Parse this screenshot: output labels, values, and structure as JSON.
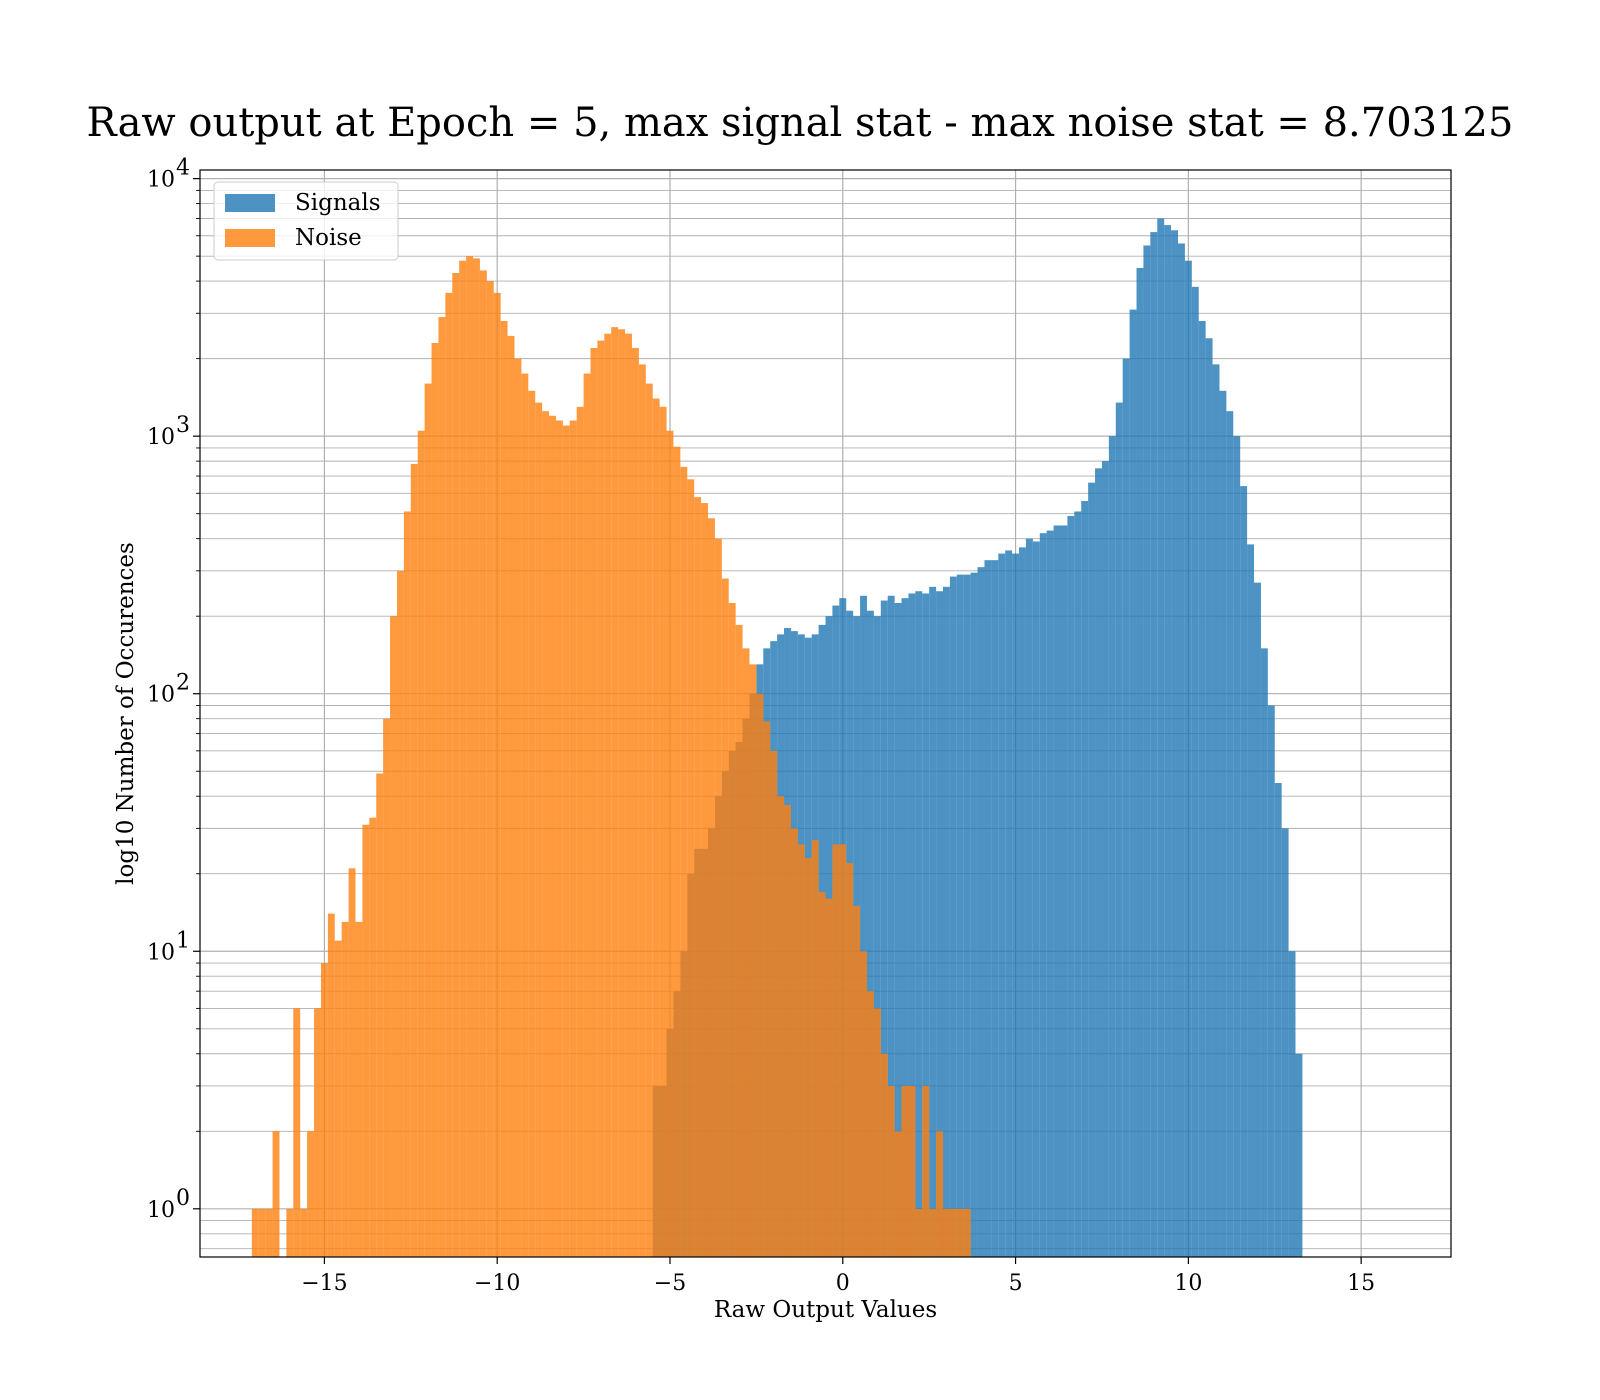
{
  "chart_data": {
    "type": "histogram",
    "title": "Raw output at Epoch = 5, max signal stat - max noise stat = 8.703125",
    "xlabel": "Raw Output Values",
    "ylabel": "log10 Number of Occurences",
    "xlim": [
      -18.6,
      17.6
    ],
    "ylim": [
      0.65,
      10800
    ],
    "yscale": "log",
    "grid": true,
    "legend_position": "upper-left",
    "x_ticks": [
      -15,
      -10,
      -5,
      0,
      5,
      10,
      15
    ],
    "x_tick_labels": [
      "−15",
      "−10",
      "−5",
      "0",
      "5",
      "10",
      "15"
    ],
    "y_ticks": [
      1,
      10,
      100,
      1000,
      10000
    ],
    "y_tick_labels": [
      {
        "base": "10",
        "exp": "0"
      },
      {
        "base": "10",
        "exp": "1"
      },
      {
        "base": "10",
        "exp": "2"
      },
      {
        "base": "10",
        "exp": "3"
      },
      {
        "base": "10",
        "exp": "4"
      }
    ],
    "series": [
      {
        "name": "Signals",
        "color": "#1f77b4",
        "opacity": 0.8,
        "bin_start": -5.5,
        "bin_width": 0.2,
        "counts": [
          3,
          3,
          5,
          7,
          10,
          20,
          25,
          25,
          30,
          40,
          50,
          60,
          65,
          80,
          100,
          130,
          150,
          160,
          170,
          180,
          175,
          170,
          165,
          170,
          185,
          200,
          220,
          235,
          210,
          200,
          240,
          210,
          200,
          230,
          240,
          225,
          235,
          245,
          250,
          245,
          260,
          250,
          260,
          285,
          290,
          290,
          295,
          310,
          330,
          330,
          350,
          360,
          350,
          370,
          400,
          390,
          420,
          430,
          450,
          450,
          490,
          510,
          560,
          660,
          750,
          800,
          1000,
          1350,
          2000,
          3100,
          4500,
          5500,
          6200,
          7000,
          6600,
          6300,
          5600,
          4800,
          3800,
          2800,
          2400,
          1900,
          1500,
          1250,
          1000,
          640,
          380,
          270,
          150,
          90,
          45,
          30,
          10,
          4
        ]
      },
      {
        "name": "Noise",
        "color": "#ff7f0e",
        "opacity": 0.8,
        "bin_start": -17.1,
        "bin_width": 0.2,
        "counts": [
          1,
          1,
          1,
          2,
          0,
          1,
          6,
          1,
          2,
          6,
          9,
          14,
          11,
          13,
          21,
          13,
          31,
          33,
          49,
          80,
          200,
          300,
          510,
          780,
          1050,
          1600,
          2300,
          2900,
          3600,
          4300,
          4800,
          5000,
          4900,
          4400,
          4000,
          3600,
          2800,
          2450,
          2000,
          1750,
          1500,
          1350,
          1250,
          1200,
          1150,
          1100,
          1150,
          1300,
          1750,
          2200,
          2350,
          2500,
          2650,
          2600,
          2500,
          2200,
          1900,
          1600,
          1400,
          1300,
          1050,
          910,
          760,
          680,
          580,
          550,
          480,
          400,
          280,
          225,
          185,
          150,
          130,
          100,
          78,
          60,
          40,
          37,
          30,
          26,
          23,
          27,
          17,
          16,
          26,
          26,
          22,
          15,
          10,
          7,
          6,
          4,
          3,
          2,
          3,
          3,
          1,
          3,
          1,
          2,
          1,
          1,
          1,
          1
        ]
      }
    ]
  }
}
